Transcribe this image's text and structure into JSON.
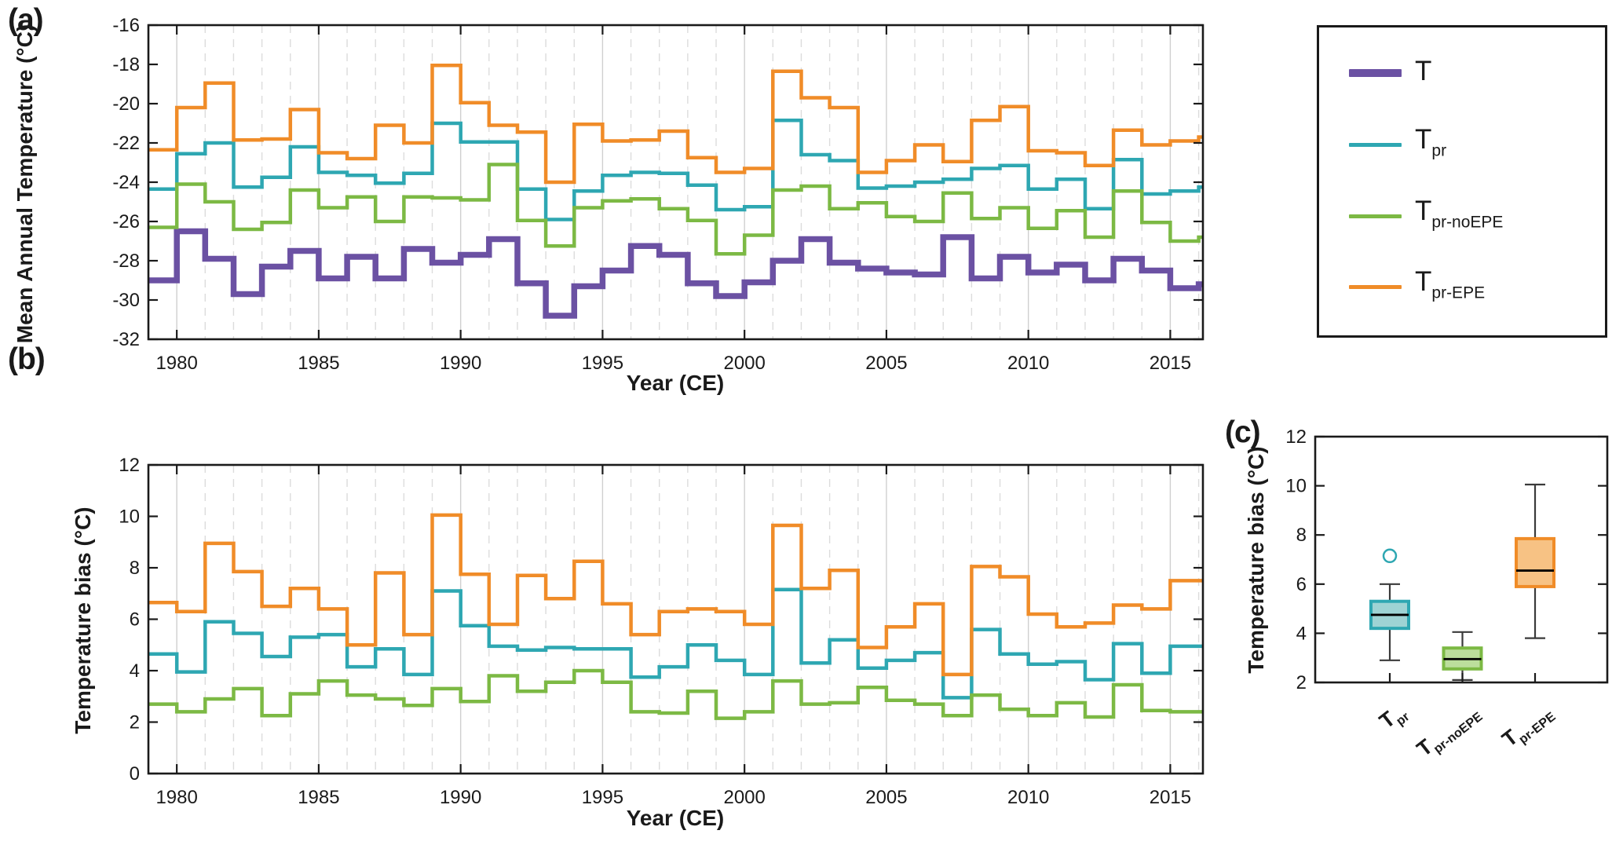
{
  "figure": {
    "background": "#ffffff"
  },
  "colors": {
    "T": "#6B51A3",
    "T_pr": "#2EA7B2",
    "T_pr_noEPE": "#7CB944",
    "T_pr_EPE": "#F08C28",
    "box_fill_pr": "#9ED3D4",
    "box_fill_noEPE": "#BCDE9C",
    "box_fill_EPE": "#F7C284",
    "grid_major": "#CFCFCF",
    "grid_minor": "#DCDCDC",
    "axis": "#1a1a1a",
    "whisker": "#3a3a3a"
  },
  "panels": {
    "a": {
      "label": "(a)",
      "ylabel": "Mean Annual Temperature (°C)",
      "xlabel": "Year (CE)",
      "yticks": [
        -32,
        -30,
        -28,
        -26,
        -24,
        -22,
        -20,
        -18,
        -16
      ],
      "xticks": [
        1980,
        1985,
        1990,
        1995,
        2000,
        2005,
        2010,
        2015
      ],
      "ylim": [
        -32,
        -16
      ],
      "xlim": [
        1979,
        2016.15
      ]
    },
    "b": {
      "label": "(b)",
      "ylabel": "Temperature bias (°C)",
      "xlabel": "Year (CE)",
      "yticks": [
        0,
        2,
        4,
        6,
        8,
        10,
        12
      ],
      "xticks": [
        1980,
        1985,
        1990,
        1995,
        2000,
        2005,
        2010,
        2015
      ],
      "ylim": [
        0,
        12
      ],
      "xlim": [
        1979,
        2016.15
      ]
    },
    "c": {
      "label": "(c)",
      "ylabel": "Temperature bias (°C)",
      "yticks": [
        2,
        4,
        6,
        8,
        10,
        12
      ],
      "ylim": [
        2,
        12
      ]
    }
  },
  "legend": {
    "entries": [
      {
        "main": "T",
        "sub": "",
        "color": "#6B51A3",
        "thickness": 10
      },
      {
        "main": "T",
        "sub": "pr",
        "color": "#2EA7B2",
        "thickness": 5
      },
      {
        "main": "T",
        "sub": "pr-noEPE",
        "color": "#7CB944",
        "thickness": 5
      },
      {
        "main": "T",
        "sub": "pr-EPE",
        "color": "#F08C28",
        "thickness": 5
      }
    ]
  },
  "chart_data": [
    {
      "type": "line",
      "subtype": "step",
      "panel": "a",
      "xlabel": "Year (CE)",
      "ylabel": "Mean Annual Temperature (°C)",
      "xlim": [
        1979,
        2016.15
      ],
      "ylim": [
        -32,
        -16
      ],
      "grid": "vertical-major-solid-minor-dashed",
      "legend_position": "outside-right",
      "x": [
        1979,
        1980,
        1981,
        1982,
        1983,
        1984,
        1985,
        1986,
        1987,
        1988,
        1989,
        1990,
        1991,
        1992,
        1993,
        1994,
        1995,
        1996,
        1997,
        1998,
        1999,
        2000,
        2001,
        2002,
        2003,
        2004,
        2005,
        2006,
        2007,
        2008,
        2009,
        2010,
        2011,
        2012,
        2013,
        2014,
        2015,
        2016
      ],
      "series": [
        {
          "name": "T",
          "color": "#6B51A3",
          "width": 7.5,
          "values": [
            -29.0,
            -26.5,
            -27.9,
            -29.7,
            -28.3,
            -27.5,
            -28.9,
            -27.8,
            -28.9,
            -27.4,
            -28.1,
            -27.7,
            -26.9,
            -29.15,
            -30.8,
            -29.3,
            -28.5,
            -27.25,
            -27.7,
            -29.15,
            -29.8,
            -29.1,
            -28.0,
            -26.9,
            -28.1,
            -28.4,
            -28.6,
            -28.7,
            -26.8,
            -28.9,
            -27.8,
            -28.6,
            -28.2,
            -29.0,
            -27.9,
            -28.5,
            -29.4,
            -29.2
          ]
        },
        {
          "name": "T_pr",
          "color": "#2EA7B2",
          "width": 4.5,
          "values": [
            -24.35,
            -22.55,
            -22.0,
            -24.25,
            -23.75,
            -22.2,
            -23.5,
            -23.65,
            -24.05,
            -23.55,
            -21.0,
            -21.95,
            -21.95,
            -24.35,
            -25.9,
            -24.45,
            -23.65,
            -23.5,
            -23.55,
            -24.15,
            -25.4,
            -25.25,
            -20.85,
            -22.6,
            -22.9,
            -24.3,
            -24.2,
            -24.0,
            -23.85,
            -23.3,
            -23.15,
            -24.35,
            -23.85,
            -25.35,
            -22.85,
            -24.6,
            -24.45,
            -24.25
          ]
        },
        {
          "name": "T_pr-noEPE",
          "color": "#7CB944",
          "width": 4.5,
          "values": [
            -26.3,
            -24.1,
            -25.0,
            -26.4,
            -26.05,
            -24.4,
            -25.3,
            -24.75,
            -26.0,
            -24.75,
            -24.8,
            -24.9,
            -23.1,
            -25.95,
            -27.25,
            -25.3,
            -24.95,
            -24.85,
            -25.35,
            -25.95,
            -27.65,
            -26.7,
            -24.4,
            -24.2,
            -25.35,
            -25.05,
            -25.75,
            -26.0,
            -24.55,
            -25.85,
            -25.3,
            -26.35,
            -25.45,
            -26.8,
            -24.45,
            -26.05,
            -27.0,
            -26.8
          ]
        },
        {
          "name": "T_pr-EPE",
          "color": "#F08C28",
          "width": 4.5,
          "values": [
            -22.35,
            -20.2,
            -18.95,
            -21.85,
            -21.8,
            -20.3,
            -22.5,
            -22.8,
            -21.1,
            -22.0,
            -18.05,
            -19.95,
            -21.1,
            -21.45,
            -24.0,
            -21.05,
            -21.9,
            -21.85,
            -21.4,
            -22.75,
            -23.5,
            -23.3,
            -18.35,
            -19.7,
            -20.2,
            -23.5,
            -22.9,
            -22.1,
            -22.95,
            -20.85,
            -20.15,
            -22.4,
            -22.5,
            -23.15,
            -21.35,
            -22.1,
            -21.9,
            -21.7
          ]
        }
      ]
    },
    {
      "type": "line",
      "subtype": "step",
      "panel": "b",
      "xlabel": "Year (CE)",
      "ylabel": "Temperature bias (°C)",
      "xlim": [
        1979,
        2016.15
      ],
      "ylim": [
        0,
        12
      ],
      "grid": "vertical-major-solid-minor-dashed",
      "x": [
        1979,
        1980,
        1981,
        1982,
        1983,
        1984,
        1985,
        1986,
        1987,
        1988,
        1989,
        1990,
        1991,
        1992,
        1993,
        1994,
        1995,
        1996,
        1997,
        1998,
        1999,
        2000,
        2001,
        2002,
        2003,
        2004,
        2005,
        2006,
        2007,
        2008,
        2009,
        2010,
        2011,
        2012,
        2013,
        2014,
        2015,
        2016
      ],
      "series": [
        {
          "name": "T_pr bias",
          "color": "#2EA7B2",
          "width": 4.5,
          "values": [
            4.65,
            3.95,
            5.9,
            5.45,
            4.55,
            5.3,
            5.4,
            4.15,
            4.85,
            3.85,
            7.1,
            5.75,
            4.95,
            4.8,
            4.9,
            4.85,
            4.85,
            3.75,
            4.15,
            5.0,
            4.4,
            3.85,
            7.15,
            4.3,
            5.2,
            4.1,
            4.4,
            4.7,
            2.95,
            5.6,
            4.65,
            4.25,
            4.35,
            3.65,
            5.05,
            3.9,
            4.95,
            4.95
          ]
        },
        {
          "name": "T_pr-noEPE bias",
          "color": "#7CB944",
          "width": 4.5,
          "values": [
            2.7,
            2.4,
            2.9,
            3.3,
            2.25,
            3.1,
            3.6,
            3.05,
            2.9,
            2.65,
            3.3,
            2.8,
            3.8,
            3.2,
            3.55,
            4.0,
            3.55,
            2.4,
            2.35,
            3.2,
            2.15,
            2.4,
            3.6,
            2.7,
            2.75,
            3.35,
            2.85,
            2.7,
            2.25,
            3.05,
            2.5,
            2.25,
            2.75,
            2.2,
            3.45,
            2.45,
            2.4,
            2.4
          ]
        },
        {
          "name": "T_pr-EPE bias",
          "color": "#F08C28",
          "width": 4.5,
          "values": [
            6.65,
            6.3,
            8.95,
            7.85,
            6.5,
            7.2,
            6.4,
            5.0,
            7.8,
            5.4,
            10.05,
            7.75,
            5.8,
            7.7,
            6.8,
            8.25,
            6.6,
            5.4,
            6.3,
            6.4,
            6.3,
            5.8,
            9.65,
            7.2,
            7.9,
            4.9,
            5.7,
            6.6,
            3.85,
            8.05,
            7.65,
            6.2,
            5.7,
            5.85,
            6.55,
            6.4,
            7.5,
            7.5
          ]
        }
      ]
    },
    {
      "type": "boxplot",
      "panel": "c",
      "ylabel": "Temperature bias (°C)",
      "ylim": [
        2,
        12
      ],
      "boxes": [
        {
          "name": "T_pr",
          "label_main": "T",
          "label_sub": "pr",
          "color": "#2EA7B2",
          "fill": "#9ED3D4",
          "whisker_low": 2.9,
          "q1": 4.2,
          "median": 4.75,
          "q3": 5.3,
          "whisker_high": 6.0,
          "outliers": [
            7.15
          ]
        },
        {
          "name": "T_pr-noEPE",
          "label_main": "T",
          "label_sub": "pr-noEPE",
          "color": "#7CB944",
          "fill": "#BCDE9C",
          "whisker_low": 2.1,
          "q1": 2.55,
          "median": 2.95,
          "q3": 3.4,
          "whisker_high": 4.05,
          "outliers": []
        },
        {
          "name": "T_pr-EPE",
          "label_main": "T",
          "label_sub": "pr-EPE",
          "color": "#F08C28",
          "fill": "#F7C284",
          "whisker_low": 3.8,
          "q1": 5.9,
          "median": 6.55,
          "q3": 7.85,
          "whisker_high": 10.05,
          "outliers": []
        }
      ]
    }
  ]
}
